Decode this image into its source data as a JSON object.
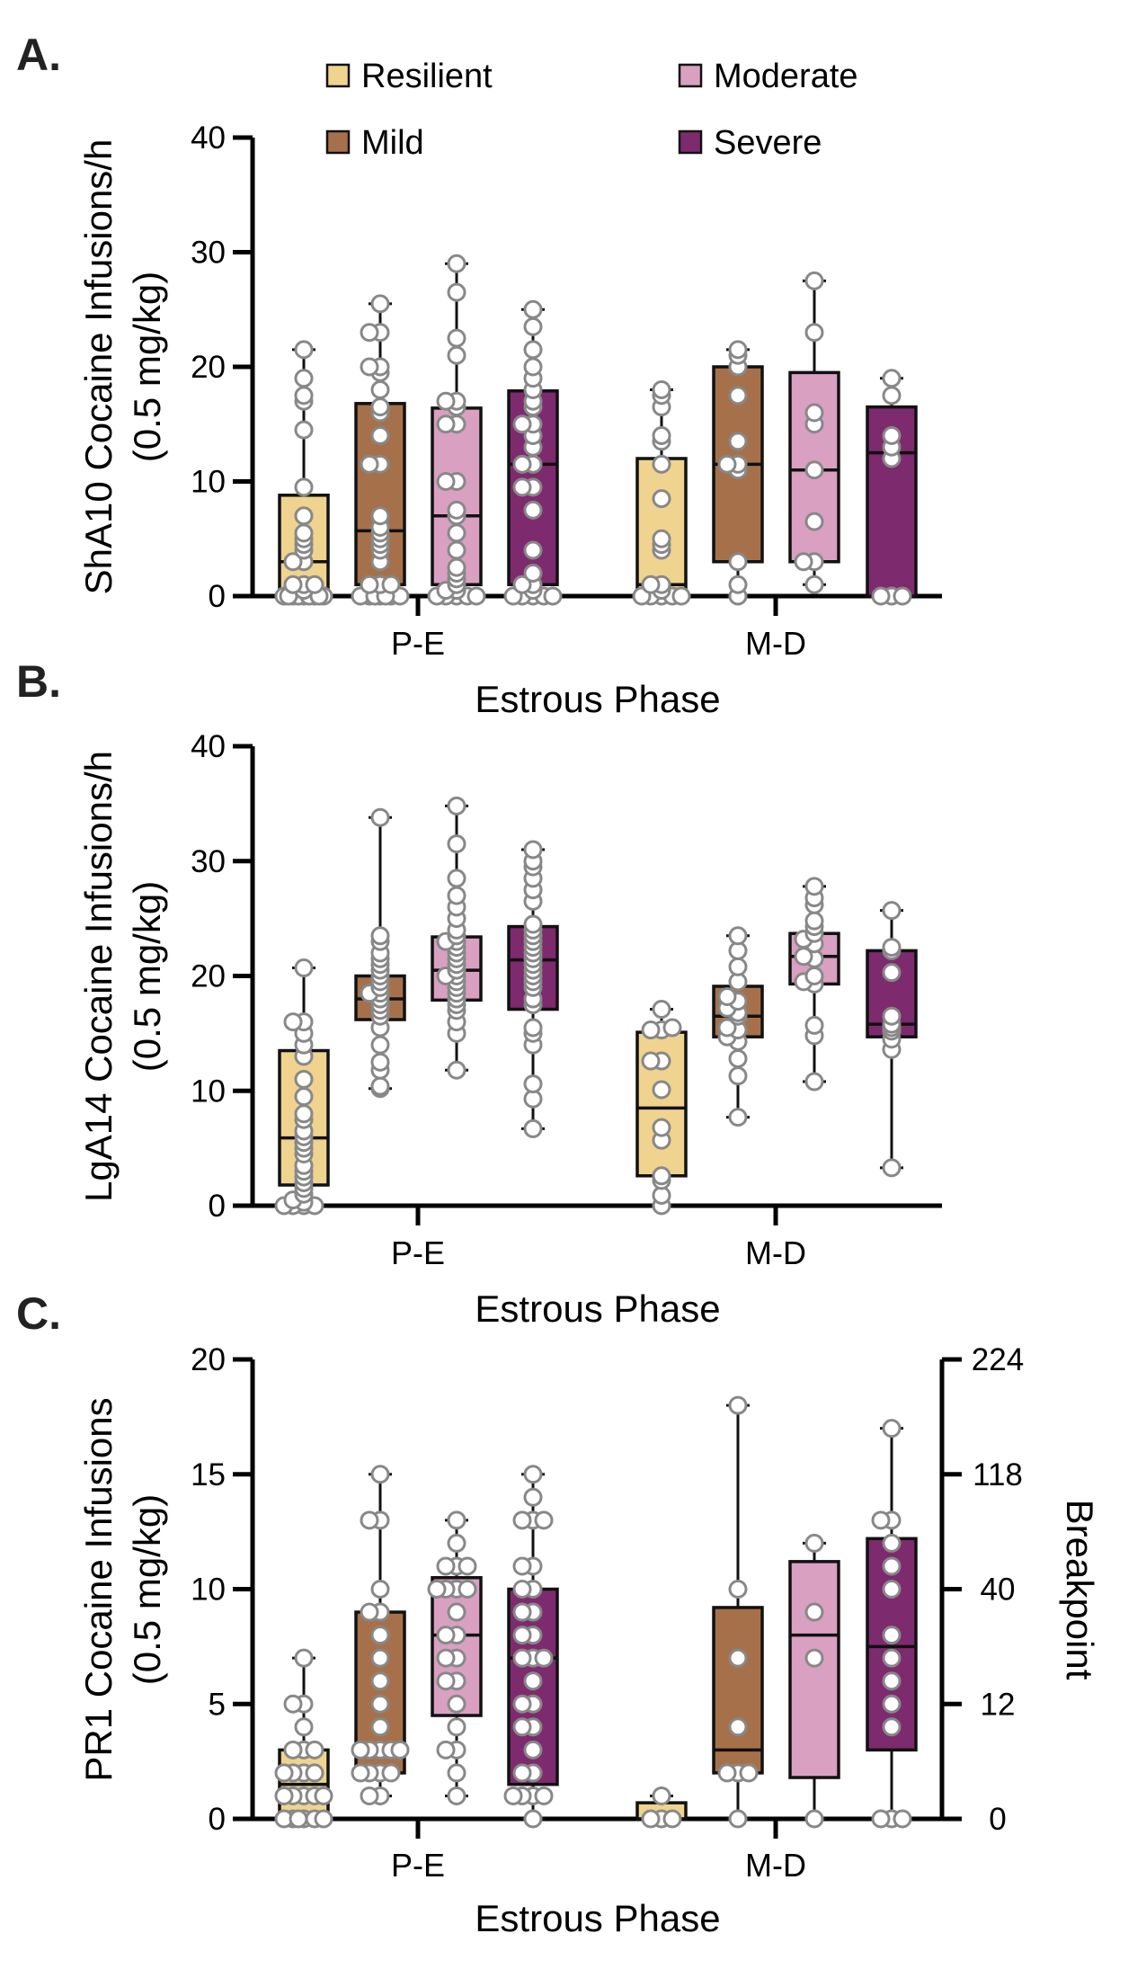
{
  "legend": [
    {
      "key": "resilient",
      "label": "Resilient",
      "color": "#EFD38F"
    },
    {
      "key": "mild",
      "label": "Mild",
      "color": "#A6714A"
    },
    {
      "key": "moderate",
      "label": "Moderate",
      "color": "#D9A0C1"
    },
    {
      "key": "severe",
      "label": "Severe",
      "color": "#7E2A6E"
    }
  ],
  "chart_data": [
    {
      "type": "box",
      "panel": "A.",
      "ylabel_line1": "ShA10 Cocaine Infusions/h",
      "ylabel_line2": "(0.5 mg/kg)",
      "xlabel": "Estrous Phase",
      "categories": [
        "P-E",
        "M-D"
      ],
      "ylim": [
        0,
        40
      ],
      "yticks": [
        0,
        10,
        20,
        30,
        40
      ],
      "groups": [
        {
          "phase": "P-E",
          "series": "resilient",
          "min": 0,
          "q1": 0,
          "median": 3.0,
          "q3": 8.8,
          "max": 21.5,
          "points": [
            0,
            0,
            0,
            0,
            0,
            0,
            0,
            0,
            0,
            0.5,
            1,
            1,
            1,
            3,
            3,
            4,
            4.5,
            5,
            5.5,
            7,
            9.5,
            14.5,
            17,
            17.5,
            19,
            21.5
          ]
        },
        {
          "phase": "P-E",
          "series": "mild",
          "min": 0,
          "q1": 1,
          "median": 5.7,
          "q3": 16.8,
          "max": 25.5,
          "points": [
            0,
            0,
            0,
            0,
            0,
            0,
            0,
            1,
            1,
            1,
            3,
            4,
            4.5,
            5,
            5.5,
            6,
            7,
            11.5,
            11.5,
            14,
            16,
            16.5,
            18,
            19.5,
            20,
            20,
            23,
            23,
            25.5
          ]
        },
        {
          "phase": "P-E",
          "series": "moderate",
          "min": 0,
          "q1": 1,
          "median": 7.0,
          "q3": 16.4,
          "max": 29,
          "points": [
            0,
            0,
            0,
            0,
            0,
            0.5,
            0.5,
            1,
            1.5,
            2,
            2.5,
            4,
            5.5,
            7,
            7.5,
            10,
            10,
            15,
            15,
            16.5,
            17,
            17,
            21,
            22.5,
            26.5,
            29
          ]
        },
        {
          "phase": "P-E",
          "series": "severe",
          "min": 0,
          "q1": 1,
          "median": 11.5,
          "q3": 17.9,
          "max": 25,
          "points": [
            0,
            0,
            0,
            0,
            0,
            0.5,
            1,
            1,
            2,
            4,
            7.5,
            9.5,
            9.5,
            11.5,
            11.5,
            13,
            14,
            15,
            15,
            16.5,
            17,
            18,
            19,
            20,
            21.5,
            23.5,
            25
          ]
        },
        {
          "phase": "M-D",
          "series": "resilient",
          "min": 0,
          "q1": 0,
          "median": 1,
          "q3": 12,
          "max": 18,
          "points": [
            0,
            0,
            0,
            0,
            0,
            0.5,
            1,
            1,
            4,
            4.5,
            5,
            8.5,
            11.5,
            13.5,
            14,
            16.5,
            17.5,
            18
          ]
        },
        {
          "phase": "M-D",
          "series": "mild",
          "min": 0,
          "q1": 3,
          "median": 11.5,
          "q3": 20,
          "max": 21.5,
          "points": [
            0,
            1,
            3,
            11,
            11.5,
            11.5,
            13.5,
            17.5,
            20,
            21,
            21.5
          ]
        },
        {
          "phase": "M-D",
          "series": "moderate",
          "min": 1,
          "q1": 3,
          "median": 11,
          "q3": 19.5,
          "max": 27.5,
          "points": [
            1,
            3,
            3,
            6.5,
            11,
            15,
            16,
            23,
            27.5
          ]
        },
        {
          "phase": "M-D",
          "series": "severe",
          "min": 0,
          "q1": 0,
          "median": 12.5,
          "q3": 16.5,
          "max": 19,
          "points": [
            0,
            0,
            0,
            12,
            13,
            14,
            17.5,
            19
          ]
        }
      ]
    },
    {
      "type": "box",
      "panel": "B.",
      "ylabel_line1": "LgA14 Cocaine Infusions/h",
      "ylabel_line2": "(0.5 mg/kg)",
      "xlabel": "Estrous Phase",
      "categories": [
        "P-E",
        "M-D"
      ],
      "ylim": [
        0,
        40
      ],
      "yticks": [
        0,
        10,
        20,
        30,
        40
      ],
      "groups": [
        {
          "phase": "P-E",
          "series": "resilient",
          "min": 0,
          "q1": 1.8,
          "median": 5.9,
          "q3": 13.5,
          "max": 20.7,
          "points": [
            0,
            0,
            0,
            0,
            0.3,
            0.5,
            1,
            1.5,
            2,
            2.5,
            3,
            3.5,
            4.5,
            5,
            5.5,
            6,
            6.5,
            7.5,
            8,
            9.5,
            11,
            13,
            14,
            15,
            16,
            16,
            20.7
          ]
        },
        {
          "phase": "P-E",
          "series": "mild",
          "min": 10.2,
          "q1": 16.2,
          "median": 18,
          "q3": 20,
          "max": 33.8,
          "points": [
            10.2,
            10.4,
            11.8,
            12.5,
            14,
            15.5,
            16.5,
            17,
            17.5,
            18,
            18.5,
            18.5,
            19,
            19.5,
            20,
            20.5,
            21,
            21.5,
            22,
            23,
            23.5,
            33.8
          ]
        },
        {
          "phase": "P-E",
          "series": "moderate",
          "min": 11.8,
          "q1": 17.9,
          "median": 20.5,
          "q3": 23.4,
          "max": 34.8,
          "points": [
            11.8,
            15,
            16,
            17,
            17.5,
            18,
            18.5,
            19,
            19.5,
            20,
            20,
            20.5,
            21,
            21.5,
            22,
            22.5,
            23,
            23,
            23.5,
            24,
            25,
            26,
            27,
            28.5,
            31.5,
            34.8
          ]
        },
        {
          "phase": "P-E",
          "series": "severe",
          "min": 6.7,
          "q1": 17.1,
          "median": 21.4,
          "q3": 24.3,
          "max": 31,
          "points": [
            6.7,
            9.3,
            10.6,
            14,
            15,
            15.5,
            17.5,
            18,
            19,
            19.5,
            20,
            20.5,
            21,
            21.5,
            22,
            22.5,
            23,
            23.5,
            24,
            24.5,
            26.5,
            27.5,
            28.5,
            29.5,
            30,
            31
          ]
        },
        {
          "phase": "M-D",
          "series": "resilient",
          "min": 0,
          "q1": 2.6,
          "median": 8.5,
          "q3": 15.1,
          "max": 17.1,
          "points": [
            0,
            0.9,
            2.2,
            2.6,
            5.7,
            6.8,
            10.1,
            12.6,
            12.6,
            15.3,
            15.3,
            15.5,
            17.1
          ]
        },
        {
          "phase": "M-D",
          "series": "mild",
          "min": 7.7,
          "q1": 14.7,
          "median": 16.5,
          "q3": 19.1,
          "max": 23.5,
          "points": [
            7.7,
            11.3,
            12.8,
            14.3,
            14.7,
            15.3,
            15.5,
            16.5,
            16.8,
            17.2,
            17.8,
            18.2,
            19.5,
            20.8,
            22.2,
            23.5
          ]
        },
        {
          "phase": "M-D",
          "series": "moderate",
          "min": 10.8,
          "q1": 19.3,
          "median": 21.7,
          "q3": 23.7,
          "max": 27.8,
          "points": [
            10.8,
            14.8,
            15.7,
            19.3,
            19.5,
            20,
            21.5,
            21.7,
            22.8,
            23.2,
            23.7,
            24.3,
            24.8,
            26.2,
            26.8,
            27.8
          ]
        },
        {
          "phase": "M-D",
          "series": "severe",
          "min": 3.3,
          "q1": 14.7,
          "median": 15.8,
          "q3": 22.2,
          "max": 25.7,
          "points": [
            3.3,
            13.6,
            14.5,
            15.2,
            15.5,
            15.8,
            16.5,
            20.3,
            22.2,
            22.5,
            25.7
          ]
        }
      ]
    },
    {
      "type": "box",
      "panel": "C.",
      "ylabel_line1": "PR1 Cocaine Infusions",
      "ylabel_line2": "(0.5 mg/kg)",
      "y2label": "Breakpoint",
      "xlabel": "Estrous Phase",
      "categories": [
        "P-E",
        "M-D"
      ],
      "ylim": [
        0,
        20
      ],
      "yticks": [
        0,
        5,
        10,
        15,
        20
      ],
      "y2ticks": [
        "0",
        "12",
        "40",
        "118",
        "224"
      ],
      "groups": [
        {
          "phase": "P-E",
          "series": "resilient",
          "min": 0,
          "q1": 0,
          "median": 1.5,
          "q3": 3,
          "max": 7,
          "points": [
            0,
            0,
            0,
            0,
            0,
            0,
            1,
            1,
            1,
            1,
            1,
            2,
            2,
            2,
            2,
            3,
            3,
            3,
            4,
            5,
            5,
            7
          ]
        },
        {
          "phase": "P-E",
          "series": "mild",
          "min": 1,
          "q1": 2,
          "median": 3,
          "q3": 9,
          "max": 15,
          "points": [
            1,
            1,
            2,
            2,
            2,
            2,
            3,
            3,
            3,
            3,
            3,
            4,
            5,
            6,
            7,
            8,
            9,
            9,
            10,
            13,
            13,
            15
          ]
        },
        {
          "phase": "P-E",
          "series": "moderate",
          "min": 1,
          "q1": 4.5,
          "median": 8,
          "q3": 10.5,
          "max": 13,
          "points": [
            1,
            2,
            3,
            3,
            4,
            5,
            6,
            6,
            7,
            7,
            8,
            8,
            9,
            10,
            10,
            10,
            10,
            11,
            11,
            11,
            12,
            13
          ]
        },
        {
          "phase": "P-E",
          "series": "severe",
          "min": 0,
          "q1": 1.5,
          "median": 7,
          "q3": 10,
          "max": 15,
          "points": [
            0,
            1,
            1,
            1,
            1,
            2,
            2,
            3,
            4,
            4,
            5,
            5,
            6,
            7,
            7,
            7,
            8,
            8,
            9,
            9,
            10,
            10,
            11,
            11,
            13,
            13,
            13,
            14,
            15
          ]
        },
        {
          "phase": "M-D",
          "series": "resilient",
          "min": 0,
          "q1": 0,
          "median": 0,
          "q3": 0.7,
          "max": 1,
          "points": [
            0,
            0,
            0,
            1
          ]
        },
        {
          "phase": "M-D",
          "series": "mild",
          "min": 0,
          "q1": 2,
          "median": 3,
          "q3": 9.2,
          "max": 18,
          "points": [
            0,
            2,
            2,
            2,
            4,
            7,
            10,
            18
          ]
        },
        {
          "phase": "M-D",
          "series": "moderate",
          "min": 0,
          "q1": 1.8,
          "median": 8,
          "q3": 11.2,
          "max": 12,
          "points": [
            0,
            7,
            9,
            12
          ]
        },
        {
          "phase": "M-D",
          "series": "severe",
          "min": 0,
          "q1": 3,
          "median": 7.5,
          "q3": 12.2,
          "max": 17,
          "points": [
            0,
            0,
            0,
            4,
            5,
            6,
            7,
            8,
            10,
            11,
            12,
            13,
            13,
            17
          ]
        }
      ]
    }
  ]
}
